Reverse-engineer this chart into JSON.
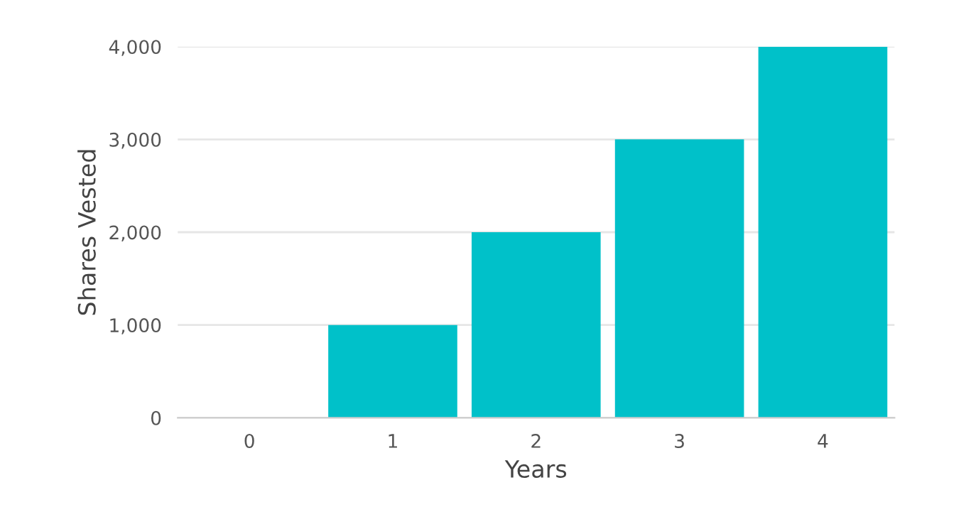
{
  "chart_data": {
    "type": "bar",
    "xlabel": "Years",
    "ylabel": "Shares Vested",
    "categories": [
      "0",
      "1",
      "2",
      "3",
      "4"
    ],
    "values": [
      0,
      1000,
      2000,
      3000,
      4000
    ],
    "color": "#00c1c9",
    "ylim": [
      0,
      4000
    ],
    "yticks": [
      {
        "value": 0,
        "label": "0"
      },
      {
        "value": 1000,
        "label": "1,000"
      },
      {
        "value": 2000,
        "label": "2,000"
      },
      {
        "value": 3000,
        "label": "3,000"
      },
      {
        "value": 4000,
        "label": "4,000"
      }
    ],
    "grid": "y"
  }
}
